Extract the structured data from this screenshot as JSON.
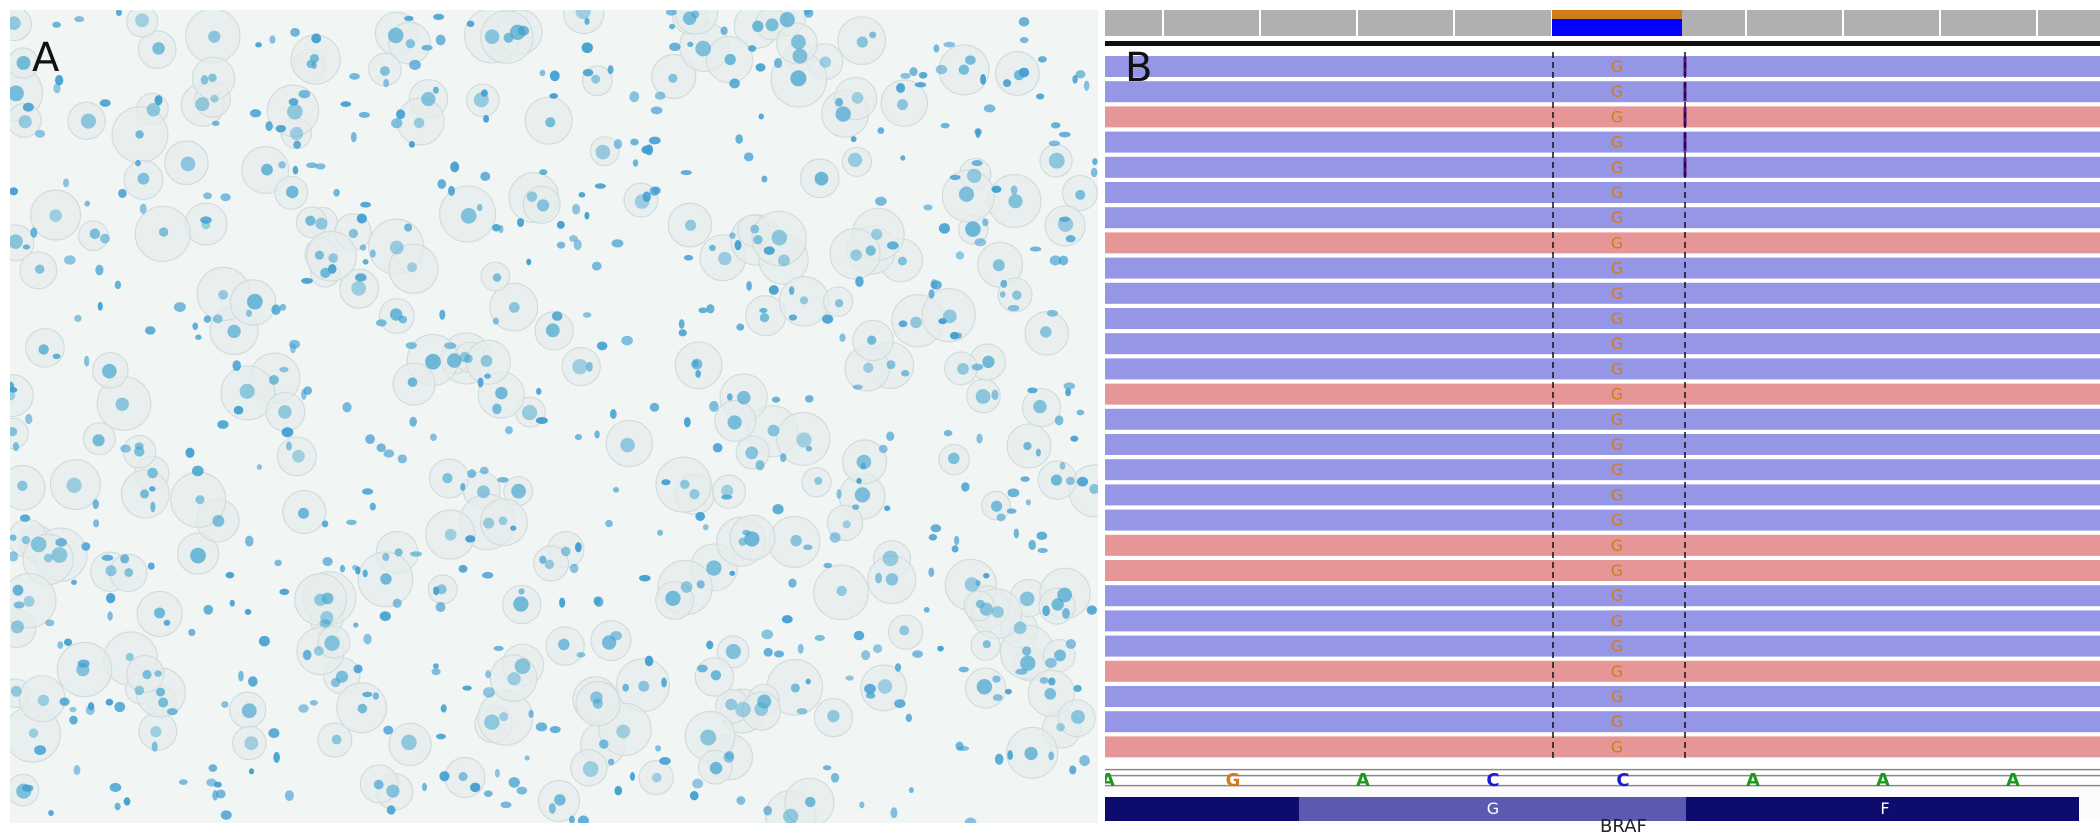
{
  "panel_a": {
    "label": "A"
  },
  "panel_b": {
    "label": "B",
    "read_base": "G",
    "read_strands": [
      "+",
      "+",
      "-",
      "+",
      "+",
      "+",
      "+",
      "-",
      "+",
      "+",
      "+",
      "+",
      "+",
      "-",
      "+",
      "+",
      "+",
      "+",
      "+",
      "-",
      "-",
      "+",
      "+",
      "+",
      "-",
      "+",
      "+",
      "-"
    ],
    "reference_sequence": [
      "A",
      "G",
      "A",
      "C",
      "C",
      "A",
      "A",
      "A"
    ],
    "amino_acids": [
      "G",
      "F"
    ],
    "gene": "BRAF",
    "colors": {
      "plus_strand": "#9696e6",
      "minus_strand": "#e69696",
      "base_G": "#d17c1a",
      "base_A": "#1a9a1a",
      "base_C": "#1a1ad1",
      "coverage_orange": "#d17c1a",
      "coverage_blue": "#0000ff",
      "gene_dark": "#0c0c6e",
      "gene_light": "#5a5ab0",
      "nuclei": "#4aa8cf"
    }
  }
}
